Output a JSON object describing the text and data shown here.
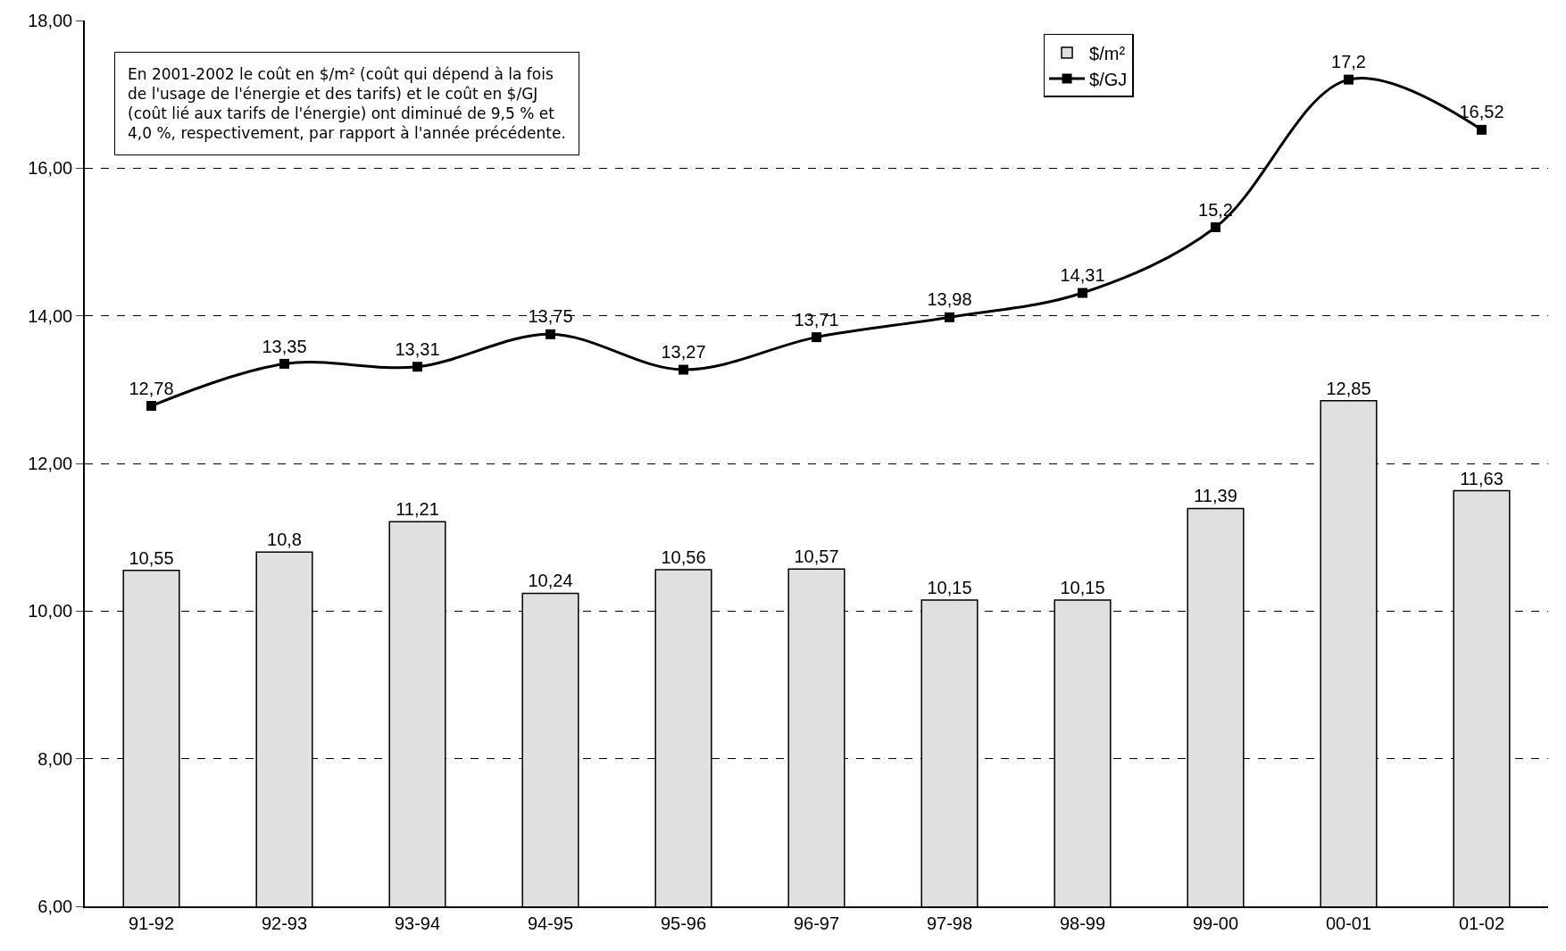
{
  "chart_data": {
    "type": "bar",
    "categories": [
      "91-92",
      "92-93",
      "93-94",
      "94-95",
      "95-96",
      "96-97",
      "97-98",
      "98-99",
      "99-00",
      "00-01",
      "01-02"
    ],
    "series": [
      {
        "name": "$/m²",
        "color": "#e0e0e0",
        "values": [
          10.55,
          10.8,
          11.21,
          10.24,
          10.56,
          10.57,
          10.15,
          10.15,
          11.39,
          12.85,
          11.63
        ],
        "value_labels": [
          "10,55",
          "10,8",
          "11,21",
          "10,24",
          "10,56",
          "10,57",
          "10,15",
          "10,15",
          "11,39",
          "12,85",
          "11,63"
        ]
      },
      {
        "name": "$/GJ",
        "type": "line",
        "color": "#000000",
        "marker": "square",
        "line_style": "solid",
        "values": [
          12.78,
          13.35,
          13.31,
          13.75,
          13.27,
          13.71,
          13.98,
          14.31,
          15.2,
          17.2,
          16.52
        ],
        "value_labels": [
          "12,78",
          "13,35",
          "13,31",
          "13,75",
          "13,27",
          "13,71",
          "13,98",
          "14,31",
          "15,2",
          "17,2",
          "16,52"
        ]
      }
    ],
    "ylim": [
      6,
      18
    ],
    "yticks": [
      {
        "value": 6,
        "label": "6,00"
      },
      {
        "value": 8,
        "label": "8,00"
      },
      {
        "value": 10,
        "label": "10,00"
      },
      {
        "value": 12,
        "label": "12,00"
      },
      {
        "value": 14,
        "label": "14,00"
      },
      {
        "value": 16,
        "label": "16,00"
      },
      {
        "value": 18,
        "label": "18,00"
      }
    ],
    "grid": "y",
    "legend": "top right",
    "annotations": [
      "En 2001-2002 le coût en $/m² (coût qui dépend à la fois\nde l'usage de l'énergie et des tarifs) et le coût en $/GJ\n(coût lié aux tarifs de l'énergie) ont diminué de 9,5 % et\n4,0 %, respectivement, par rapport à l'année précédente."
    ]
  }
}
